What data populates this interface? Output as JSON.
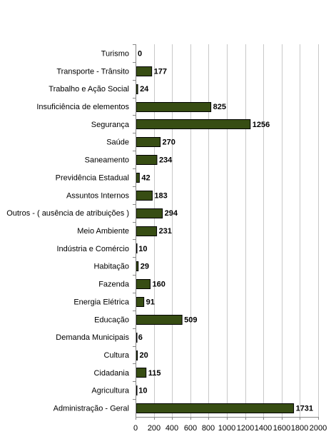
{
  "chart_data": {
    "type": "bar",
    "orientation": "horizontal",
    "categories": [
      "Turismo",
      "Transporte - Trânsito",
      "Trabalho e Ação Social",
      "Insuficiência de elementos",
      "Segurança",
      "Saúde",
      "Saneamento",
      "Previdência Estadual",
      "Assuntos Internos",
      "Outros - ( ausência de atribuições )",
      "Meio Ambiente",
      "Indústria e Comércio",
      "Habitação",
      "Fazenda",
      "Energia Elétrica",
      "Educação",
      "Demanda Municipais",
      "Cultura",
      "Cidadania",
      "Agricultura",
      "Administração - Geral"
    ],
    "values": [
      0,
      177,
      24,
      825,
      1256,
      270,
      234,
      42,
      183,
      294,
      231,
      10,
      29,
      160,
      91,
      509,
      6,
      20,
      115,
      10,
      1731
    ],
    "xlim": [
      0,
      2000
    ],
    "xticks": [
      "0",
      "200",
      "400",
      "600",
      "800",
      "1000",
      "1200",
      "1400",
      "1600",
      "1800",
      "2000"
    ],
    "grid": true,
    "data_labels": true,
    "legend": "none",
    "title": "",
    "xlabel": "",
    "ylabel": "",
    "bar_color": "#374d13",
    "bar_edge_color": "#000000",
    "grid_color": "#c8c8c8"
  }
}
